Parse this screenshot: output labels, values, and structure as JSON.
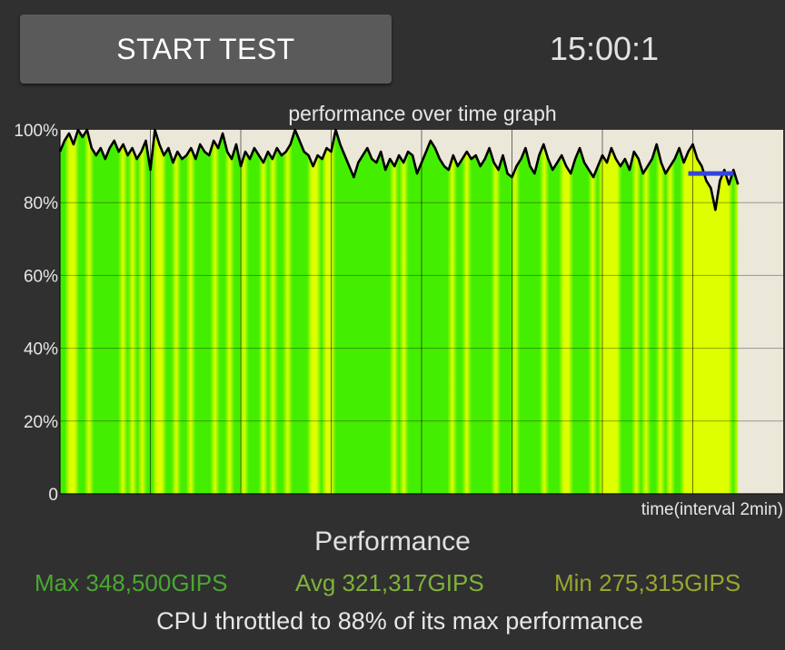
{
  "toolbar": {
    "start_label": "START TEST"
  },
  "timer": {
    "value": "15:00:1"
  },
  "chart_data": {
    "type": "line",
    "title": "performance over time graph",
    "xlabel": "time(interval 2min)",
    "ylabel": "",
    "ylim": [
      0,
      100
    ],
    "yticks": [
      "0",
      "20%",
      "40%",
      "60%",
      "80%",
      "100%"
    ],
    "x_unit": "minutes",
    "xlim": [
      0,
      16
    ],
    "x_gridlines_every": 2,
    "series": [
      {
        "values": [
          [
            0.0,
            94
          ],
          [
            0.1,
            97
          ],
          [
            0.2,
            99
          ],
          [
            0.3,
            96
          ],
          [
            0.4,
            100
          ],
          [
            0.5,
            98
          ],
          [
            0.6,
            100
          ],
          [
            0.7,
            95
          ],
          [
            0.8,
            93
          ],
          [
            0.9,
            95
          ],
          [
            1.0,
            92
          ],
          [
            1.1,
            95
          ],
          [
            1.2,
            97
          ],
          [
            1.3,
            94
          ],
          [
            1.4,
            96
          ],
          [
            1.5,
            93
          ],
          [
            1.6,
            95
          ],
          [
            1.7,
            92
          ],
          [
            1.8,
            94
          ],
          [
            1.9,
            97
          ],
          [
            2.0,
            89
          ],
          [
            2.1,
            100
          ],
          [
            2.2,
            96
          ],
          [
            2.3,
            93
          ],
          [
            2.4,
            95
          ],
          [
            2.5,
            91
          ],
          [
            2.6,
            94
          ],
          [
            2.7,
            92
          ],
          [
            2.8,
            93
          ],
          [
            2.9,
            95
          ],
          [
            3.0,
            92
          ],
          [
            3.1,
            96
          ],
          [
            3.2,
            94
          ],
          [
            3.3,
            93
          ],
          [
            3.4,
            97
          ],
          [
            3.5,
            95
          ],
          [
            3.6,
            99
          ],
          [
            3.7,
            94
          ],
          [
            3.8,
            92
          ],
          [
            3.9,
            96
          ],
          [
            4.0,
            90
          ],
          [
            4.1,
            94
          ],
          [
            4.2,
            92
          ],
          [
            4.3,
            95
          ],
          [
            4.4,
            93
          ],
          [
            4.5,
            91
          ],
          [
            4.6,
            94
          ],
          [
            4.7,
            92
          ],
          [
            4.8,
            95
          ],
          [
            4.9,
            93
          ],
          [
            5.0,
            94
          ],
          [
            5.1,
            96
          ],
          [
            5.2,
            100
          ],
          [
            5.3,
            97
          ],
          [
            5.4,
            94
          ],
          [
            5.5,
            93
          ],
          [
            5.6,
            90
          ],
          [
            5.7,
            93
          ],
          [
            5.8,
            92
          ],
          [
            5.9,
            95
          ],
          [
            6.0,
            94
          ],
          [
            6.1,
            100
          ],
          [
            6.2,
            96
          ],
          [
            6.3,
            93
          ],
          [
            6.4,
            90
          ],
          [
            6.5,
            87
          ],
          [
            6.6,
            91
          ],
          [
            6.7,
            93
          ],
          [
            6.8,
            95
          ],
          [
            6.9,
            92
          ],
          [
            7.0,
            91
          ],
          [
            7.1,
            94
          ],
          [
            7.2,
            89
          ],
          [
            7.3,
            92
          ],
          [
            7.4,
            90
          ],
          [
            7.5,
            93
          ],
          [
            7.6,
            91
          ],
          [
            7.7,
            94
          ],
          [
            7.8,
            93
          ],
          [
            7.9,
            88
          ],
          [
            8.0,
            91
          ],
          [
            8.1,
            94
          ],
          [
            8.2,
            97
          ],
          [
            8.3,
            95
          ],
          [
            8.4,
            92
          ],
          [
            8.5,
            90
          ],
          [
            8.6,
            89
          ],
          [
            8.7,
            93
          ],
          [
            8.8,
            90
          ],
          [
            8.9,
            92
          ],
          [
            9.0,
            94
          ],
          [
            9.1,
            92
          ],
          [
            9.2,
            93
          ],
          [
            9.3,
            90
          ],
          [
            9.4,
            92
          ],
          [
            9.5,
            95
          ],
          [
            9.6,
            91
          ],
          [
            9.7,
            89
          ],
          [
            9.8,
            93
          ],
          [
            9.9,
            88
          ],
          [
            10.0,
            87
          ],
          [
            10.1,
            90
          ],
          [
            10.2,
            92
          ],
          [
            10.3,
            95
          ],
          [
            10.4,
            90
          ],
          [
            10.5,
            88
          ],
          [
            10.6,
            93
          ],
          [
            10.7,
            96
          ],
          [
            10.8,
            92
          ],
          [
            10.9,
            89
          ],
          [
            11.0,
            91
          ],
          [
            11.1,
            93
          ],
          [
            11.2,
            90
          ],
          [
            11.3,
            88
          ],
          [
            11.4,
            92
          ],
          [
            11.5,
            95
          ],
          [
            11.6,
            91
          ],
          [
            11.7,
            89
          ],
          [
            11.8,
            87
          ],
          [
            11.9,
            90
          ],
          [
            12.0,
            93
          ],
          [
            12.1,
            91
          ],
          [
            12.2,
            95
          ],
          [
            12.3,
            92
          ],
          [
            12.4,
            90
          ],
          [
            12.5,
            92
          ],
          [
            12.6,
            89
          ],
          [
            12.7,
            94
          ],
          [
            12.8,
            92
          ],
          [
            12.9,
            88
          ],
          [
            13.0,
            90
          ],
          [
            13.1,
            92
          ],
          [
            13.2,
            96
          ],
          [
            13.3,
            91
          ],
          [
            13.4,
            88
          ],
          [
            13.5,
            90
          ],
          [
            13.6,
            92
          ],
          [
            13.7,
            95
          ],
          [
            13.8,
            91
          ],
          [
            13.9,
            94
          ],
          [
            14.0,
            96
          ],
          [
            14.1,
            92
          ],
          [
            14.2,
            90
          ],
          [
            14.3,
            86
          ],
          [
            14.4,
            84
          ],
          [
            14.5,
            78
          ],
          [
            14.6,
            86
          ],
          [
            14.7,
            89
          ],
          [
            14.8,
            85
          ],
          [
            14.9,
            89
          ],
          [
            15.0,
            85
          ]
        ]
      }
    ],
    "throttle_marker": {
      "x": [
        13.9,
        14.9
      ],
      "y": 88,
      "color": "#3344dd"
    },
    "colors": {
      "fill_green": "#44ee00",
      "fill_yellow": "#ddff00",
      "plot_bg": "#ebe8d9",
      "line": "#000000"
    },
    "grid": true
  },
  "summary": {
    "title": "Performance",
    "max": "Max 348,500GIPS",
    "avg": "Avg 321,317GIPS",
    "min": "Min 275,315GIPS",
    "max_color": "#4aa832",
    "avg_color": "#7fb23b",
    "min_color": "#9aa62e",
    "throttle_text": "CPU throttled to 88% of its max performance"
  }
}
